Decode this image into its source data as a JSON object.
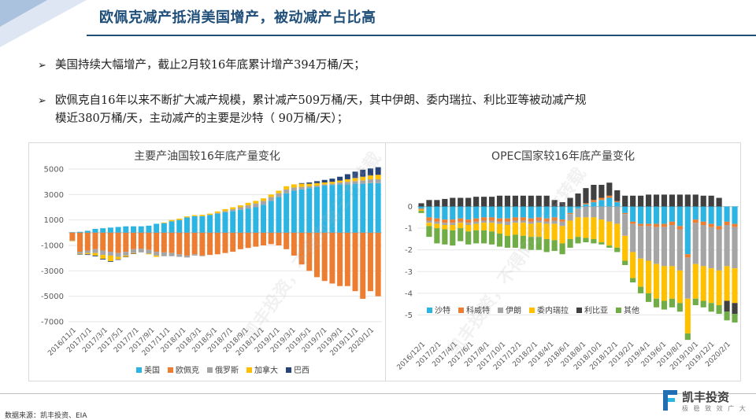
{
  "page": {
    "title": "欧佩克减产抵消美国增产，被动减产占比高",
    "bullets": [
      "美国持续大幅增产，截止2月较16年底累计增产394万桶/天；",
      "欧佩克自16年以来不断扩大减产规模，累计减产509万桶/天，其中伊朗、委内瑞拉、利比亚等被动减产规",
      "模近380万桶/天，主动减产的主要是沙特（ 90万桶/天）；"
    ],
    "bullet_marker": "➢",
    "source": "数据来源：凯丰投资、EIA",
    "logo_name": "凯丰投资",
    "logo_slogan": "极 稳 致 效 广 大",
    "watermark": "凯丰投资，不得向第三方转载",
    "colors": {
      "title": "#1f4e79",
      "accent": "#1f4e79"
    }
  },
  "chart_data": [
    {
      "type": "bar",
      "stacked": true,
      "title": "主要产油国较16年底产量变化",
      "ylim": [
        -7000,
        5000
      ],
      "yticks": [
        5000,
        3000,
        1000,
        -1000,
        -3000,
        -5000,
        -7000
      ],
      "grid": true,
      "legend": "bottom",
      "x_tick_labels": [
        "2016/11/1",
        "2017/1/1",
        "2017/3/1",
        "2017/5/1",
        "2017/7/1",
        "2017/9/1",
        "2017/11/1",
        "2018/1/1",
        "2018/3/1",
        "2018/5/1",
        "2018/7/1",
        "2018/9/1",
        "2018/11/1",
        "2019/1/1",
        "2019/3/1",
        "2019/5/1",
        "2019/7/1",
        "2019/9/1",
        "2019/11/1",
        "2020/1/1"
      ],
      "series": [
        {
          "name": "美国",
          "color": "#2cb5e3",
          "values": [
            40,
            70,
            150,
            300,
            350,
            400,
            450,
            500,
            500,
            500,
            550,
            700,
            750,
            900,
            1000,
            1200,
            1300,
            1300,
            1400,
            1500,
            1600,
            1700,
            1800,
            1900,
            2000,
            2200,
            2500,
            2800,
            3100,
            3300,
            3400,
            3500,
            3600,
            3700,
            3750,
            3800,
            3800,
            3850,
            3850,
            3900,
            3900
          ]
        },
        {
          "name": "欧佩克",
          "color": "#ed7d31",
          "values": [
            -600,
            -1500,
            -1400,
            -1300,
            -1400,
            -1500,
            -1600,
            -1500,
            -1300,
            -1250,
            -1350,
            -1500,
            -1550,
            -1600,
            -1700,
            -1800,
            -1700,
            -1800,
            -1750,
            -1700,
            -1600,
            -1500,
            -1300,
            -1200,
            -1100,
            -1000,
            -900,
            -1000,
            -1300,
            -1800,
            -2500,
            -3000,
            -3500,
            -3800,
            -4000,
            -4200,
            -4200,
            -4600,
            -5200,
            -4600,
            -5000
          ]
        },
        {
          "name": "俄罗斯",
          "color": "#a5a5a5",
          "values": [
            -50,
            -150,
            -200,
            -300,
            -350,
            -300,
            -300,
            -300,
            -300,
            -300,
            -300,
            -300,
            -300,
            -250,
            -200,
            -150,
            -100,
            -50,
            0,
            50,
            100,
            150,
            200,
            250,
            300,
            300,
            300,
            300,
            300,
            250,
            200,
            150,
            100,
            100,
            100,
            150,
            200,
            200,
            250,
            300,
            300
          ]
        },
        {
          "name": "加拿大",
          "color": "#ffc000",
          "values": [
            -20,
            -50,
            -100,
            -200,
            -300,
            -450,
            -200,
            -100,
            -50,
            0,
            -50,
            -100,
            50,
            100,
            100,
            80,
            80,
            100,
            100,
            120,
            150,
            150,
            150,
            200,
            200,
            200,
            200,
            200,
            250,
            250,
            250,
            200,
            200,
            150,
            150,
            150,
            200,
            250,
            300,
            300,
            350
          ]
        },
        {
          "name": "巴西",
          "color": "#264478",
          "values": [
            0,
            -30,
            -50,
            -60,
            -60,
            -50,
            -40,
            -20,
            -20,
            0,
            0,
            0,
            0,
            0,
            0,
            0,
            0,
            0,
            0,
            0,
            0,
            0,
            0,
            0,
            0,
            0,
            0,
            0,
            0,
            0,
            50,
            100,
            150,
            200,
            250,
            300,
            400,
            500,
            550,
            550,
            600
          ]
        }
      ]
    },
    {
      "type": "bar",
      "stacked": true,
      "title": "OPEC国家较16年底产量变化",
      "ylim": [
        -6,
        1
      ],
      "yticks": [
        0,
        -1,
        -2,
        -3,
        -4,
        -5
      ],
      "grid": true,
      "legend": "inside-bottom-left",
      "x_tick_labels": [
        "2016/12/1",
        "2017/2/1",
        "2017/4/1",
        "2017/6/1",
        "2017/8/1",
        "2017/10/1",
        "2017/12/1",
        "2018/2/1",
        "2018/4/1",
        "2018/6/1",
        "2018/8/1",
        "2018/10/1",
        "2018/12/1",
        "2019/2/1",
        "2019/4/1",
        "2019/6/1",
        "2019/8/1",
        "2019/10/1",
        "2019/12/1",
        "2020/2/1"
      ],
      "series": [
        {
          "name": "沙特",
          "color": "#2cb5e3",
          "values": [
            -0.1,
            -0.5,
            -0.55,
            -0.6,
            -0.6,
            -0.55,
            -0.6,
            -0.55,
            -0.5,
            -0.5,
            -0.55,
            -0.55,
            -0.5,
            -0.5,
            -0.55,
            -0.5,
            -0.55,
            -0.5,
            -0.6,
            -0.3,
            -0.1,
            0.1,
            0.2,
            0.3,
            0.4,
            0.2,
            -0.3,
            -0.7,
            -0.8,
            -0.8,
            -0.8,
            -0.8,
            -0.7,
            -0.9,
            -2.2,
            -0.6,
            -0.7,
            -0.8,
            -0.9,
            -0.7,
            -0.8
          ]
        },
        {
          "name": "科威特",
          "color": "#ed7d31",
          "values": [
            -0.05,
            -0.15,
            -0.15,
            -0.15,
            -0.15,
            -0.15,
            -0.15,
            -0.15,
            -0.15,
            -0.15,
            -0.15,
            -0.15,
            -0.15,
            -0.15,
            -0.15,
            -0.15,
            -0.15,
            -0.15,
            -0.1,
            -0.05,
            0,
            0.05,
            0.1,
            0.1,
            0.1,
            0.05,
            -0.05,
            -0.1,
            -0.1,
            -0.1,
            -0.15,
            -0.15,
            -0.15,
            -0.15,
            -0.15,
            -0.15,
            -0.15,
            -0.15,
            -0.15,
            -0.15,
            -0.15
          ]
        },
        {
          "name": "伊朗",
          "color": "#a5a5a5",
          "values": [
            0,
            -0.1,
            -0.1,
            -0.1,
            -0.1,
            -0.05,
            -0.1,
            -0.1,
            -0.1,
            -0.1,
            -0.1,
            -0.15,
            -0.1,
            -0.1,
            -0.1,
            -0.1,
            -0.1,
            -0.15,
            -0.2,
            -0.3,
            -0.4,
            -0.5,
            -0.5,
            -0.6,
            -0.7,
            -0.8,
            -1.0,
            -1.3,
            -1.5,
            -1.6,
            -1.7,
            -1.8,
            -1.9,
            -1.9,
            -1.9,
            -1.9,
            -1.9,
            -1.9,
            -1.9,
            -1.9,
            -1.9
          ]
        },
        {
          "name": "委内瑞拉",
          "color": "#ffc000",
          "values": [
            -0.05,
            -0.15,
            -0.2,
            -0.2,
            -0.25,
            -0.25,
            -0.3,
            -0.3,
            -0.35,
            -0.4,
            -0.45,
            -0.5,
            -0.55,
            -0.6,
            -0.6,
            -0.65,
            -0.7,
            -0.75,
            -0.8,
            -0.85,
            -0.9,
            -0.95,
            -1.0,
            -1.05,
            -1.1,
            -1.1,
            -1.15,
            -1.2,
            -1.3,
            -1.5,
            -1.6,
            -1.6,
            -1.5,
            -1.5,
            -1.6,
            -1.6,
            -1.6,
            -1.6,
            -1.6,
            -1.6,
            -1.6
          ]
        },
        {
          "name": "利比亚",
          "color": "#404040",
          "values": [
            0.15,
            0.3,
            0.3,
            0.35,
            0.4,
            0.4,
            0.4,
            0.45,
            0.45,
            0.45,
            0.5,
            0.5,
            0.5,
            0.5,
            0.5,
            0.5,
            0.5,
            0.3,
            0.2,
            0.4,
            0.6,
            0.7,
            0.7,
            0.6,
            0.6,
            0.5,
            0.5,
            0.5,
            0.5,
            0.55,
            0.55,
            0.55,
            0.55,
            0.55,
            0.55,
            0.55,
            0.5,
            0.5,
            0.4,
            -0.5,
            -0.5
          ]
        },
        {
          "name": "其他",
          "color": "#70ad47",
          "values": [
            -0.1,
            -0.5,
            -0.7,
            -0.7,
            -0.7,
            -0.6,
            -0.6,
            -0.6,
            -0.6,
            -0.6,
            -0.6,
            -0.55,
            -0.6,
            -0.6,
            -0.6,
            -0.6,
            -0.6,
            -0.5,
            -0.5,
            -0.4,
            -0.3,
            -0.2,
            -0.2,
            -0.1,
            -0.1,
            -0.2,
            -0.2,
            -0.2,
            -0.3,
            -0.4,
            -0.4,
            -0.4,
            -0.4,
            -0.4,
            -0.3,
            -0.3,
            -0.3,
            -0.4,
            -0.4,
            -0.4,
            -0.4
          ]
        }
      ]
    }
  ]
}
